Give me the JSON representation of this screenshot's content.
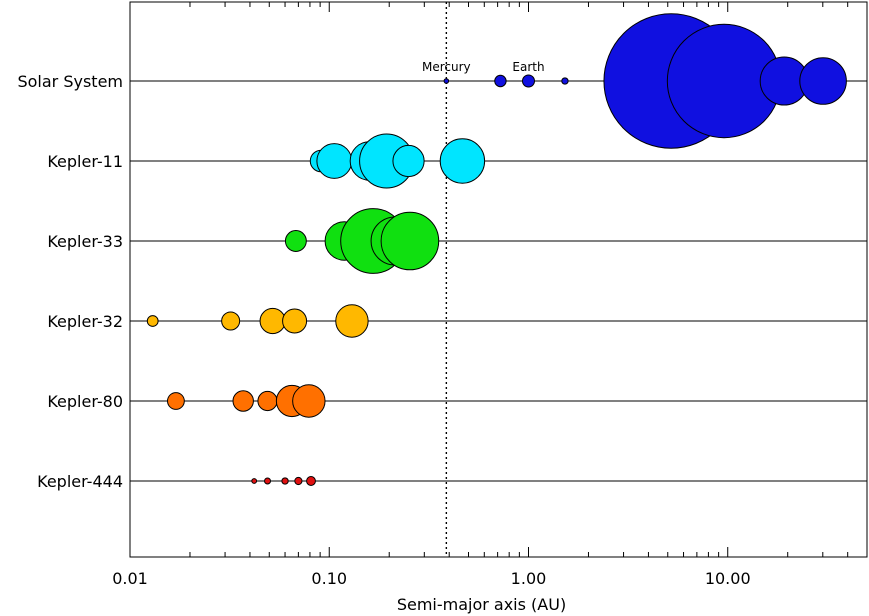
{
  "chart_data": {
    "type": "scatter",
    "title": "",
    "xlabel": "Semi-major axis (AU)",
    "ylabel": "",
    "xscale": "log",
    "xlim": [
      0.01,
      50
    ],
    "x_tick_labels": [
      "0.01",
      "0.10",
      "1.00",
      "10.00"
    ],
    "x_tick_values": [
      0.01,
      0.1,
      1,
      10
    ],
    "reference_line": {
      "x": 0.387,
      "style": "dotted"
    },
    "annotations": [
      {
        "text": "Mercury",
        "x": 0.387,
        "system": "Solar System"
      },
      {
        "text": "Earth",
        "x": 1.0,
        "system": "Solar System"
      }
    ],
    "legend": "none",
    "grid": false,
    "series": [
      {
        "name": "Solar System",
        "color": "#1010e0",
        "points": [
          {
            "a": 0.387,
            "radius_earth": 0.38
          },
          {
            "a": 0.723,
            "radius_earth": 0.95
          },
          {
            "a": 1.0,
            "radius_earth": 1.0
          },
          {
            "a": 1.524,
            "radius_earth": 0.53
          },
          {
            "a": 5.2,
            "radius_earth": 11.2
          },
          {
            "a": 9.58,
            "radius_earth": 9.45
          },
          {
            "a": 19.2,
            "radius_earth": 4.0
          },
          {
            "a": 30.1,
            "radius_earth": 3.88
          }
        ]
      },
      {
        "name": "Kepler-11",
        "color": "#00e5ff",
        "points": [
          {
            "a": 0.091,
            "radius_earth": 1.8
          },
          {
            "a": 0.106,
            "radius_earth": 2.9
          },
          {
            "a": 0.159,
            "radius_earth": 3.2
          },
          {
            "a": 0.194,
            "radius_earth": 4.5
          },
          {
            "a": 0.25,
            "radius_earth": 2.6
          },
          {
            "a": 0.466,
            "radius_earth": 3.7
          }
        ]
      },
      {
        "name": "Kepler-33",
        "color": "#10e010",
        "points": [
          {
            "a": 0.068,
            "radius_earth": 1.74
          },
          {
            "a": 0.119,
            "radius_earth": 3.2
          },
          {
            "a": 0.166,
            "radius_earth": 5.4
          },
          {
            "a": 0.214,
            "radius_earth": 4.0
          },
          {
            "a": 0.254,
            "radius_earth": 4.8
          }
        ]
      },
      {
        "name": "Kepler-32",
        "color": "#ffb800",
        "points": [
          {
            "a": 0.013,
            "radius_earth": 0.9
          },
          {
            "a": 0.032,
            "radius_earth": 1.5
          },
          {
            "a": 0.052,
            "radius_earth": 2.1
          },
          {
            "a": 0.067,
            "radius_earth": 2.0
          },
          {
            "a": 0.13,
            "radius_earth": 2.7
          }
        ]
      },
      {
        "name": "Kepler-80",
        "color": "#ff7000",
        "points": [
          {
            "a": 0.017,
            "radius_earth": 1.4
          },
          {
            "a": 0.037,
            "radius_earth": 1.7
          },
          {
            "a": 0.049,
            "radius_earth": 1.6
          },
          {
            "a": 0.065,
            "radius_earth": 2.6
          },
          {
            "a": 0.079,
            "radius_earth": 2.7
          }
        ]
      },
      {
        "name": "Kepler-444",
        "color": "#e01010",
        "points": [
          {
            "a": 0.042,
            "radius_earth": 0.4
          },
          {
            "a": 0.049,
            "radius_earth": 0.5
          },
          {
            "a": 0.06,
            "radius_earth": 0.53
          },
          {
            "a": 0.07,
            "radius_earth": 0.6
          },
          {
            "a": 0.081,
            "radius_earth": 0.74
          }
        ]
      }
    ]
  }
}
